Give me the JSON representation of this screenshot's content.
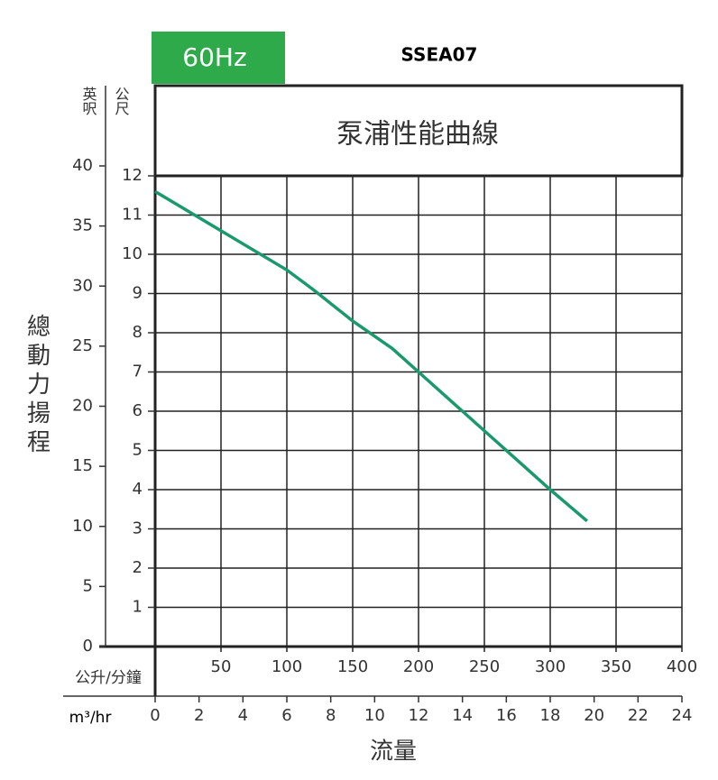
{
  "chart_data": {
    "type": "line",
    "badge": "60Hz",
    "model": "SSEA07",
    "title": "泵浦性能曲線",
    "y_label": "總動力揚程",
    "y_unit": "公尺",
    "y2_unit": "英呎",
    "x_label": "流量",
    "x_unit": "公升/分鐘",
    "x2_unit": "m³/hr",
    "xlim": [
      0,
      400
    ],
    "xticks": [
      50,
      100,
      150,
      200,
      250,
      300,
      350,
      400
    ],
    "x2lim": [
      0,
      24
    ],
    "x2ticks": [
      0,
      2,
      4,
      6,
      8,
      10,
      12,
      14,
      16,
      18,
      20,
      22,
      24
    ],
    "ylim": [
      0,
      12
    ],
    "yticks": [
      1,
      2,
      3,
      4,
      5,
      6,
      7,
      8,
      9,
      10,
      11,
      12
    ],
    "y2lim": [
      0,
      40
    ],
    "y2ticks": [
      0,
      5,
      10,
      15,
      20,
      25,
      30,
      35,
      40
    ],
    "grid": true,
    "badge_color": "#2eaa4a",
    "series": [
      {
        "color": "#1a9a6c",
        "x": [
          0,
          50,
          100,
          120,
          150,
          180,
          200,
          250,
          300,
          328
        ],
        "values": [
          11.6,
          10.6,
          9.6,
          9.1,
          8.3,
          7.6,
          7.0,
          5.5,
          4.0,
          3.2
        ]
      }
    ]
  }
}
